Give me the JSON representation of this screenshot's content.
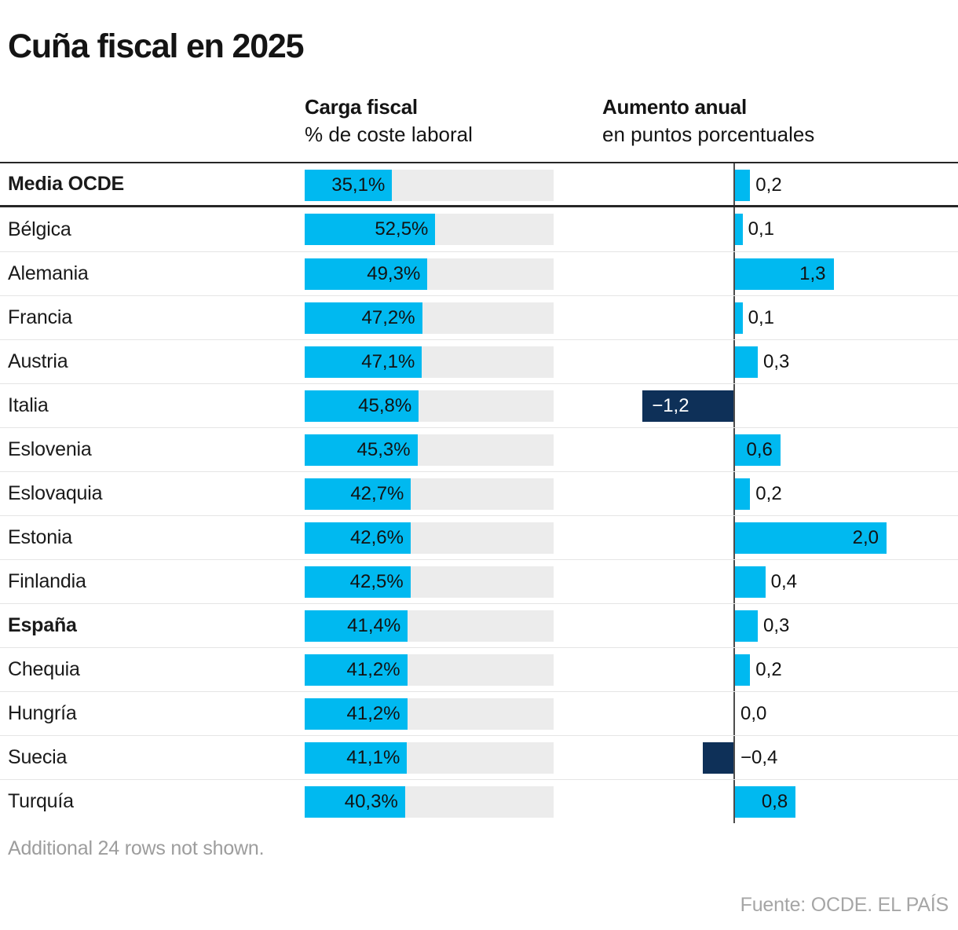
{
  "title": "Cuña fiscal en 2025",
  "columns": {
    "carga": {
      "title": "Carga fiscal",
      "subtitle": "% de coste laboral"
    },
    "aumento": {
      "title": "Aumento anual",
      "subtitle": "en puntos porcentuales"
    }
  },
  "rows": [
    {
      "country": "Media OCDE",
      "bold": true,
      "carga_label": "35,1%",
      "carga": 35.1,
      "aumento_label": "0,2",
      "aumento": 0.2
    },
    {
      "country": "Bélgica",
      "bold": false,
      "carga_label": "52,5%",
      "carga": 52.5,
      "aumento_label": "0,1",
      "aumento": 0.1
    },
    {
      "country": "Alemania",
      "bold": false,
      "carga_label": "49,3%",
      "carga": 49.3,
      "aumento_label": "1,3",
      "aumento": 1.3
    },
    {
      "country": "Francia",
      "bold": false,
      "carga_label": "47,2%",
      "carga": 47.2,
      "aumento_label": "0,1",
      "aumento": 0.1
    },
    {
      "country": "Austria",
      "bold": false,
      "carga_label": "47,1%",
      "carga": 47.1,
      "aumento_label": "0,3",
      "aumento": 0.3
    },
    {
      "country": "Italia",
      "bold": false,
      "carga_label": "45,8%",
      "carga": 45.8,
      "aumento_label": "−1,2",
      "aumento": -1.2
    },
    {
      "country": "Eslovenia",
      "bold": false,
      "carga_label": "45,3%",
      "carga": 45.3,
      "aumento_label": "0,6",
      "aumento": 0.6
    },
    {
      "country": "Eslovaquia",
      "bold": false,
      "carga_label": "42,7%",
      "carga": 42.7,
      "aumento_label": "0,2",
      "aumento": 0.2
    },
    {
      "country": "Estonia",
      "bold": false,
      "carga_label": "42,6%",
      "carga": 42.6,
      "aumento_label": "2,0",
      "aumento": 2.0
    },
    {
      "country": "Finlandia",
      "bold": false,
      "carga_label": "42,5%",
      "carga": 42.5,
      "aumento_label": "0,4",
      "aumento": 0.4
    },
    {
      "country": "España",
      "bold": true,
      "carga_label": "41,4%",
      "carga": 41.4,
      "aumento_label": "0,3",
      "aumento": 0.3
    },
    {
      "country": "Chequia",
      "bold": false,
      "carga_label": "41,2%",
      "carga": 41.2,
      "aumento_label": "0,2",
      "aumento": 0.2
    },
    {
      "country": "Hungría",
      "bold": false,
      "carga_label": "41,2%",
      "carga": 41.2,
      "aumento_label": "0,0",
      "aumento": 0.0
    },
    {
      "country": "Suecia",
      "bold": false,
      "carga_label": "41,1%",
      "carga": 41.1,
      "aumento_label": "−0,4",
      "aumento": -0.4
    },
    {
      "country": "Turquía",
      "bold": false,
      "carga_label": "40,3%",
      "carga": 40.3,
      "aumento_label": "0,8",
      "aumento": 0.8
    }
  ],
  "footnote": "Additional 24 rows not shown.",
  "source": "Fuente: OCDE. EL PAÍS",
  "colors": {
    "bar_positive": "#00b9f0",
    "bar_negative": "#0e3058",
    "track": "#ececec",
    "axis": "#4d4d4d",
    "heavy_rule": "#262626",
    "light_rule": "#e5e5e5",
    "muted_text": "#9d9d9d"
  },
  "chart_data": {
    "type": "bar",
    "title": "Cuña fiscal en 2025",
    "categories": [
      "Media OCDE",
      "Bélgica",
      "Alemania",
      "Francia",
      "Austria",
      "Italia",
      "Eslovenia",
      "Eslovaquia",
      "Estonia",
      "Finlandia",
      "España",
      "Chequia",
      "Hungría",
      "Suecia",
      "Turquía"
    ],
    "series": [
      {
        "name": "Carga fiscal (% de coste laboral)",
        "values": [
          35.1,
          52.5,
          49.3,
          47.2,
          47.1,
          45.8,
          45.3,
          42.7,
          42.6,
          42.5,
          41.4,
          41.2,
          41.2,
          41.1,
          40.3
        ],
        "axis_range": [
          0,
          100
        ],
        "color": "#00b9f0"
      },
      {
        "name": "Aumento anual (en puntos porcentuales)",
        "values": [
          0.2,
          0.1,
          1.3,
          0.1,
          0.3,
          -1.2,
          0.6,
          0.2,
          2.0,
          0.4,
          0.3,
          0.2,
          0.0,
          -0.4,
          0.8
        ],
        "axis_range": [
          -1.3,
          2.95
        ],
        "color_positive": "#00b9f0",
        "color_negative": "#0e3058"
      }
    ],
    "orientation": "horizontal",
    "grid": false,
    "legend_position": "none",
    "notes": "Bold rows: Media OCDE, España. Negative values drawn in dark navy left of zero axis."
  }
}
